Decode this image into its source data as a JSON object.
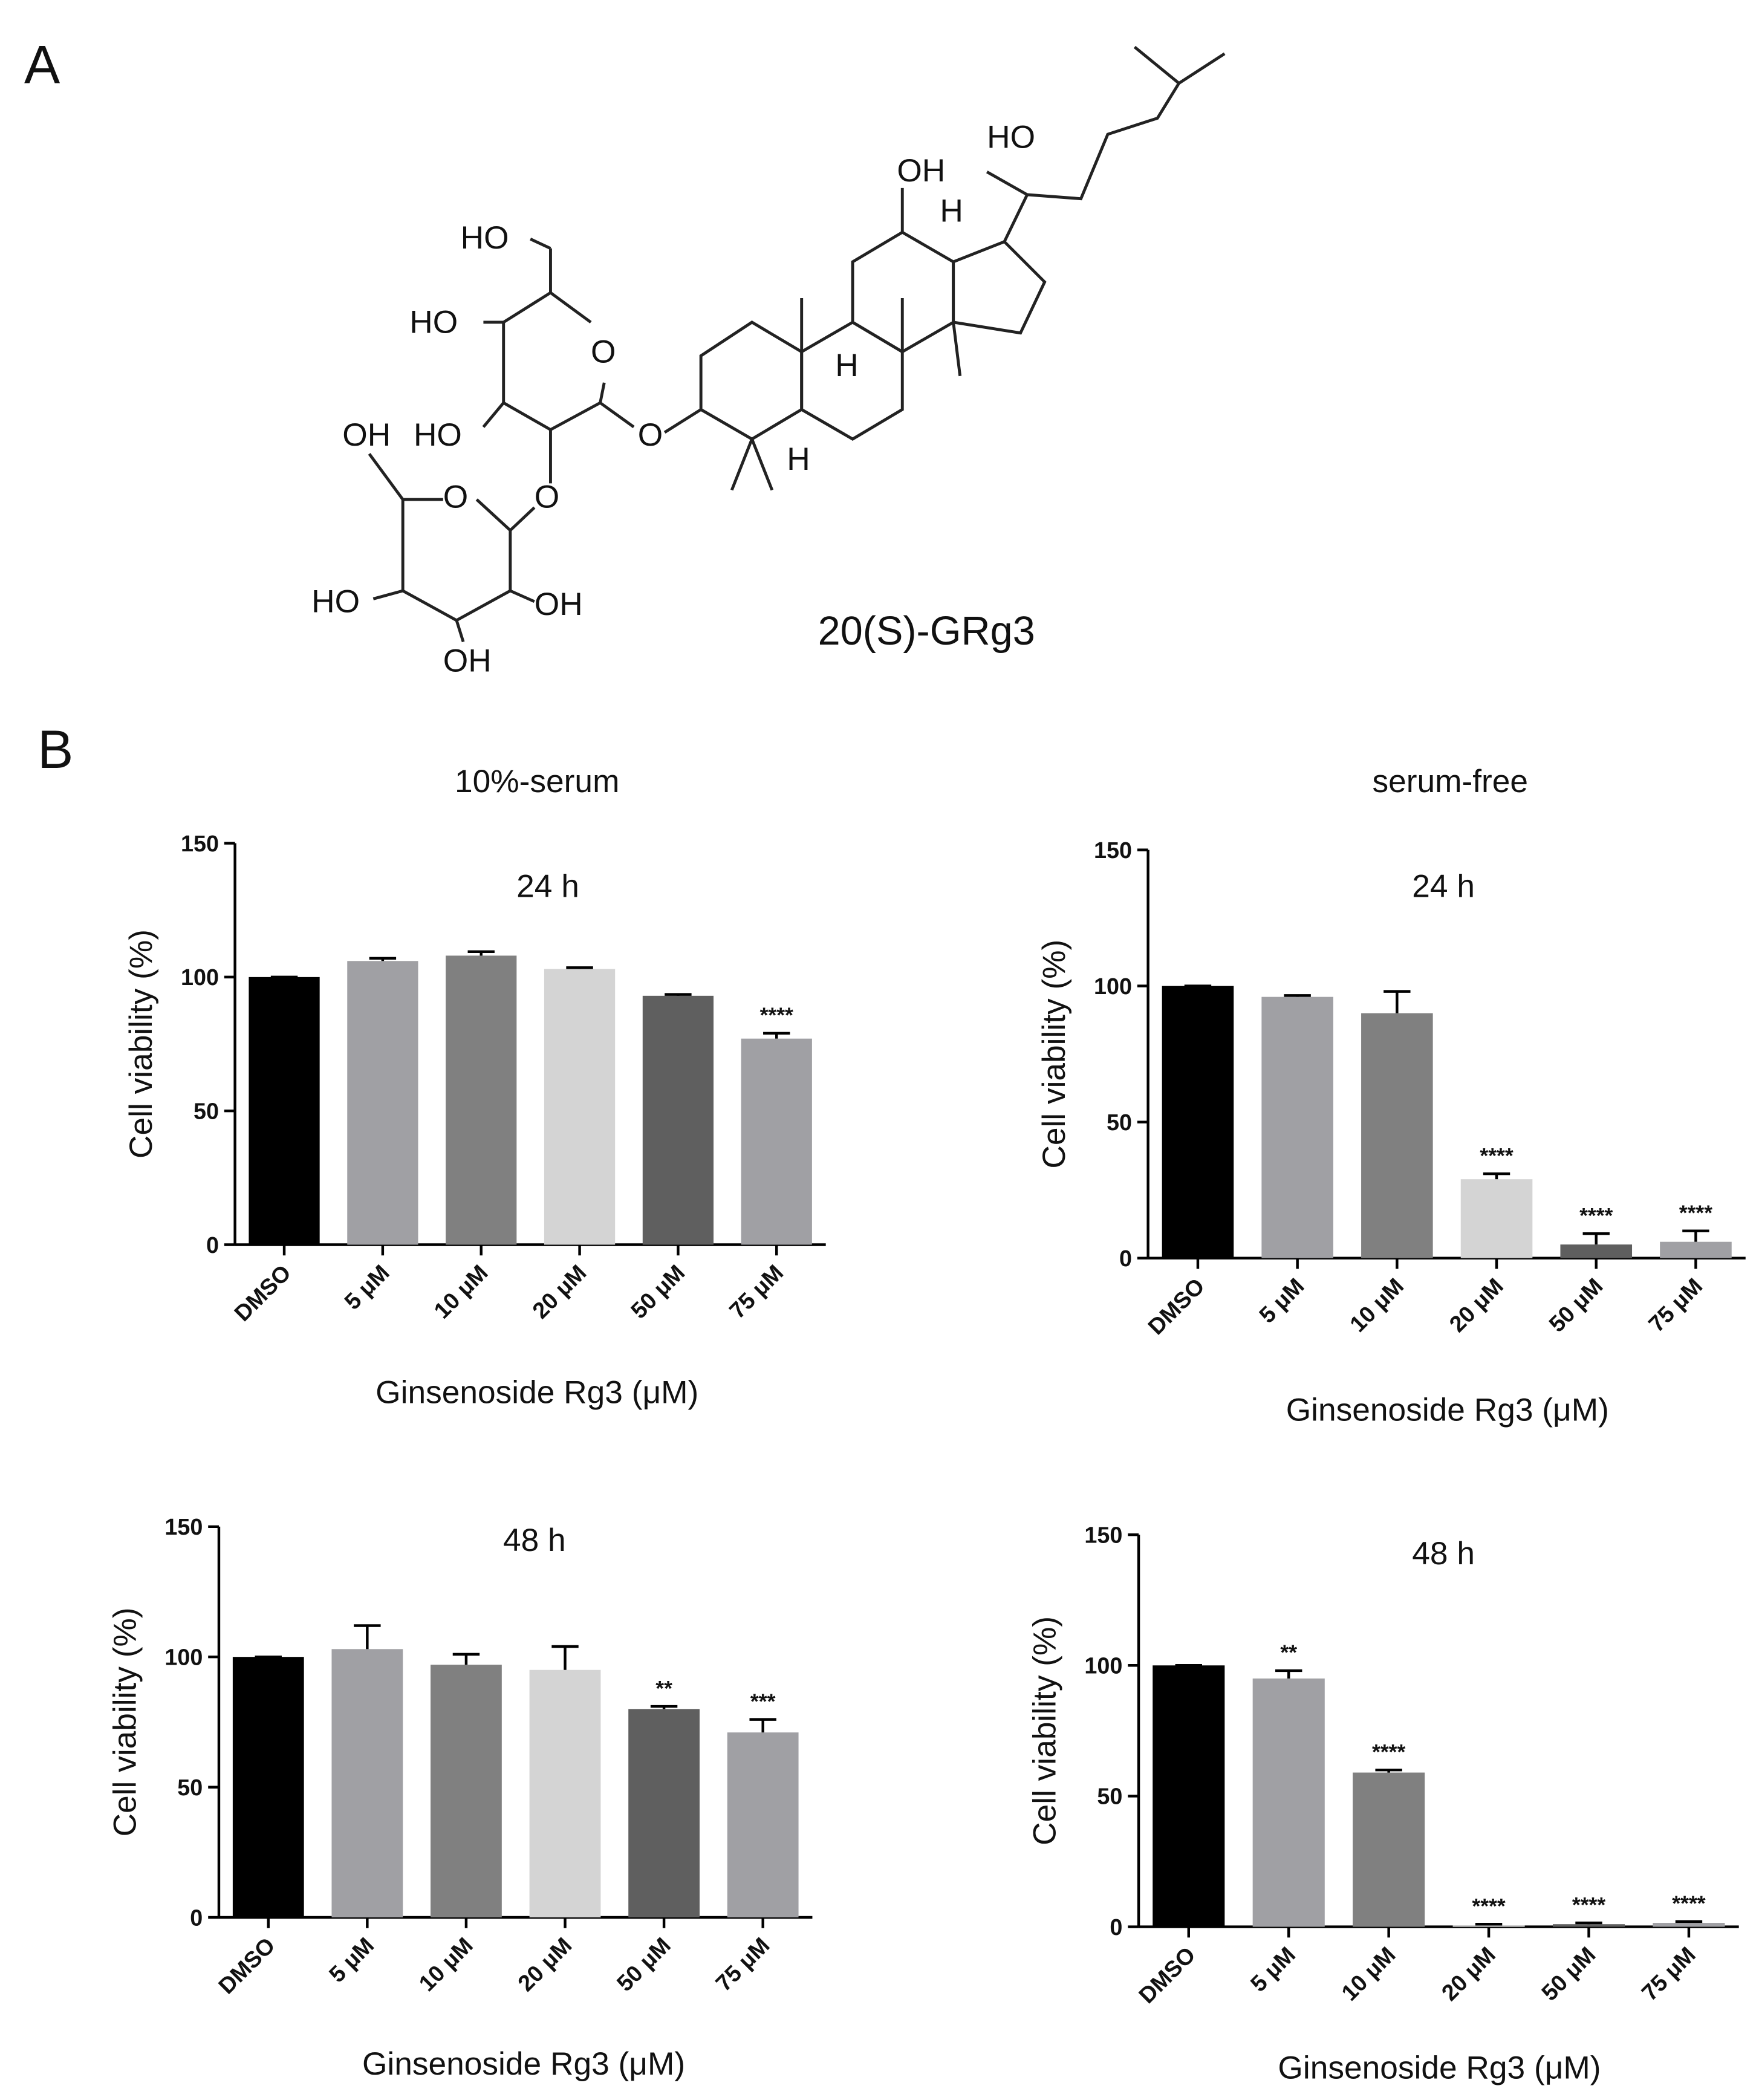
{
  "panel_a": {
    "label": "A",
    "compound": "20(S)-GRg3",
    "atom_labels": [
      "HO",
      "OH",
      "H",
      "HO",
      "HO",
      "O",
      "OH",
      "HO",
      "O",
      "H",
      "H",
      "O",
      "O",
      "HO",
      "OH",
      "OH"
    ]
  },
  "panel_b": {
    "label": "B",
    "columns": [
      "10%-serum",
      "serum-free"
    ]
  },
  "chart_data": [
    {
      "type": "bar",
      "title": "24 h",
      "x_label": "Ginsenoside Rg3 (μM)",
      "y_label": "Cell viability (%)",
      "categories": [
        "DMSO",
        "5 μM",
        "10 μM",
        "20 μM",
        "50 μM",
        "75 μM"
      ],
      "values": [
        100,
        106,
        108,
        103,
        93,
        77
      ],
      "errors": [
        0,
        1,
        1.5,
        0.5,
        0.5,
        2
      ],
      "annotations": [
        null,
        null,
        null,
        null,
        null,
        "****"
      ],
      "colors": [
        "#000000",
        "#a0a0a4",
        "#808080",
        "#d4d4d4",
        "#5f5f5f",
        "#a0a0a4"
      ],
      "ylim": [
        0,
        150
      ],
      "yticks": [
        0,
        50,
        100,
        150
      ],
      "grid": false
    },
    {
      "type": "bar",
      "title": "24 h",
      "x_label": "Ginsenoside Rg3 (μM)",
      "y_label": "Cell viability (%)",
      "categories": [
        "DMSO",
        "5 μM",
        "10 μM",
        "20 μM",
        "50 μM",
        "75 μM"
      ],
      "values": [
        100,
        96,
        90,
        29,
        5,
        6
      ],
      "errors": [
        0,
        0.5,
        8,
        2,
        4,
        4
      ],
      "annotations": [
        null,
        null,
        null,
        "****",
        "****",
        "****"
      ],
      "colors": [
        "#000000",
        "#a0a0a4",
        "#808080",
        "#d4d4d4",
        "#5f5f5f",
        "#a0a0a4"
      ],
      "ylim": [
        0,
        150
      ],
      "yticks": [
        0,
        50,
        100,
        150
      ],
      "grid": false
    },
    {
      "type": "bar",
      "title": "48 h",
      "x_label": "Ginsenoside Rg3 (μM)",
      "y_label": "Cell viability (%)",
      "categories": [
        "DMSO",
        "5 μM",
        "10 μM",
        "20 μM",
        "50 μM",
        "75 μM"
      ],
      "values": [
        100,
        103,
        97,
        95,
        80,
        71
      ],
      "errors": [
        0,
        9,
        4,
        9,
        1,
        5
      ],
      "annotations": [
        null,
        null,
        null,
        null,
        "**",
        "***"
      ],
      "colors": [
        "#000000",
        "#a0a0a4",
        "#808080",
        "#d4d4d4",
        "#5f5f5f",
        "#a0a0a4"
      ],
      "ylim": [
        0,
        150
      ],
      "yticks": [
        0,
        50,
        100,
        150
      ],
      "grid": false
    },
    {
      "type": "bar",
      "title": "48 h",
      "x_label": "Ginsenoside Rg3 (μM)",
      "y_label": "Cell viability (%)",
      "categories": [
        "DMSO",
        "5 μM",
        "10 μM",
        "20 μM",
        "50 μM",
        "75 μM"
      ],
      "values": [
        100,
        95,
        59,
        0.5,
        1,
        1.5
      ],
      "errors": [
        0,
        3,
        1,
        0.5,
        0.5,
        0.5
      ],
      "annotations": [
        null,
        "**",
        "****",
        "****",
        "****",
        "****"
      ],
      "colors": [
        "#000000",
        "#a0a0a4",
        "#808080",
        "#d4d4d4",
        "#5f5f5f",
        "#a0a0a4"
      ],
      "ylim": [
        0,
        150
      ],
      "yticks": [
        0,
        50,
        100,
        150
      ],
      "grid": false
    }
  ]
}
